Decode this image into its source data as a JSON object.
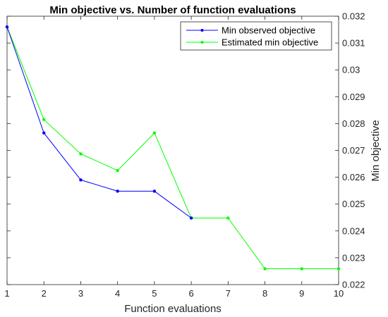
{
  "chart_data": {
    "type": "line",
    "title": "Min objective vs. Number of function evaluations",
    "xlabel": "Function evaluations",
    "ylabel": "Min objective",
    "x": [
      1,
      2,
      3,
      4,
      5,
      6,
      7,
      8,
      9,
      10
    ],
    "xlim": [
      1,
      10
    ],
    "ylim": [
      0.022,
      0.032
    ],
    "xticks": [
      "1",
      "2",
      "3",
      "4",
      "5",
      "6",
      "7",
      "8",
      "9",
      "10"
    ],
    "yticks": [
      "0.022",
      "0.023",
      "0.024",
      "0.025",
      "0.026",
      "0.027",
      "0.028",
      "0.029",
      "0.03",
      "0.031",
      "0.032"
    ],
    "y_axis_location": "right",
    "grid": false,
    "legend_position": "top-right",
    "series": [
      {
        "name": "Min observed objective",
        "color": "#0000ff",
        "values": [
          0.0316,
          0.02765,
          0.0259,
          0.02548,
          0.02548,
          0.02448,
          null,
          null,
          null,
          null
        ]
      },
      {
        "name": "Estimated min objective",
        "color": "#00ff00",
        "values": [
          0.0316,
          0.02815,
          0.02687,
          0.02625,
          0.02765,
          0.02448,
          0.02448,
          0.02259,
          0.02259,
          0.02259
        ]
      }
    ]
  }
}
